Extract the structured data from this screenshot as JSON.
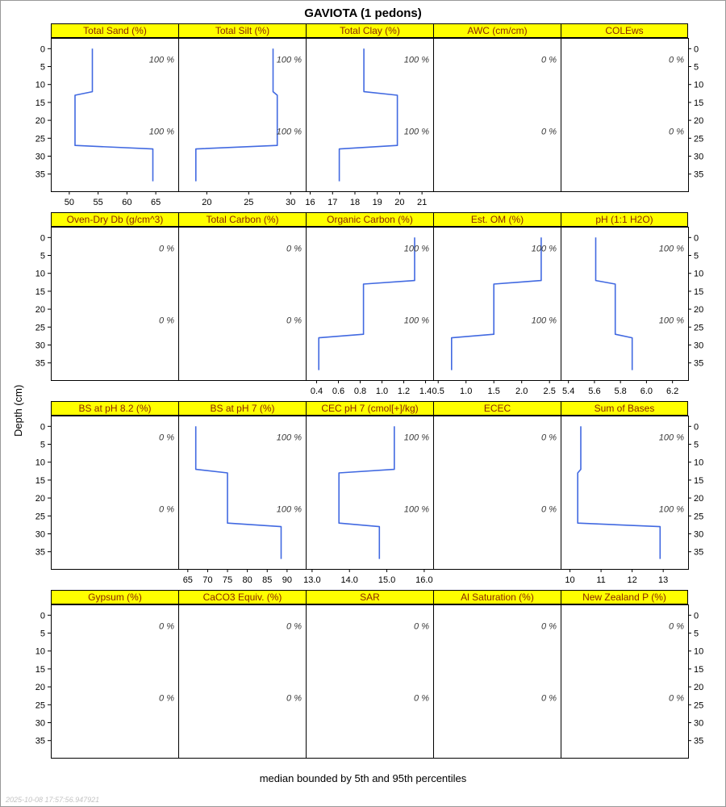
{
  "title": "GAVIOTA (1 pedons)",
  "ylabel": "Depth (cm)",
  "caption": "median bounded by 5th and 95th percentiles",
  "watermark": "2025-10-08 17:57:56.947921",
  "colors": {
    "strip_bg": "#ffff00",
    "strip_text": "#8b2500",
    "line": "#4169e1",
    "annotation": "#3a3a3a",
    "axis": "#000000"
  },
  "depth_ticks": [
    0,
    5,
    10,
    15,
    20,
    25,
    30,
    35
  ],
  "depth_range": [
    -3,
    39.8
  ],
  "chart_data": {
    "type": "line",
    "description": "Step-style depth-function profiles, depth (cm) vs property value, median bounded by 5th and 95th percentiles",
    "rows": [
      {
        "panels": [
          {
            "title": "Total Sand (%)",
            "xlim": [
              46.8,
              68.9
            ],
            "xtick_vals": [
              50,
              55,
              60,
              65
            ],
            "xtick_labels": [
              "50",
              "55",
              "60",
              "65"
            ],
            "line": [
              [
                54,
                0
              ],
              [
                54,
                12
              ],
              [
                51,
                13
              ],
              [
                51,
                27
              ],
              [
                64.5,
                28
              ],
              [
                64.5,
                37
              ]
            ],
            "annotations": [
              {
                "label": "100 %",
                "depth": 3
              },
              {
                "label": "100 %",
                "depth": 23
              }
            ]
          },
          {
            "title": "Total Silt (%)",
            "xlim": [
              16.6,
              31.8
            ],
            "xtick_vals": [
              20,
              25,
              30
            ],
            "xtick_labels": [
              "20",
              "25",
              "30"
            ],
            "line": [
              [
                27.9,
                0
              ],
              [
                27.9,
                12
              ],
              [
                28.4,
                13
              ],
              [
                28.4,
                27
              ],
              [
                18.7,
                28
              ],
              [
                18.7,
                37
              ]
            ],
            "annotations": [
              {
                "label": "100 %",
                "depth": 3
              },
              {
                "label": "100 %",
                "depth": 23
              }
            ]
          },
          {
            "title": "Total Clay (%)",
            "xlim": [
              15.8,
              21.5
            ],
            "xtick_vals": [
              16,
              17,
              18,
              19,
              20,
              21
            ],
            "xtick_labels": [
              "16",
              "17",
              "18",
              "19",
              "20",
              "21"
            ],
            "line": [
              [
                18.4,
                0
              ],
              [
                18.4,
                12
              ],
              [
                19.9,
                13
              ],
              [
                19.9,
                27
              ],
              [
                17.3,
                28
              ],
              [
                17.3,
                37
              ]
            ],
            "annotations": [
              {
                "label": "100 %",
                "depth": 3
              },
              {
                "label": "100 %",
                "depth": 23
              }
            ]
          },
          {
            "title": "AWC (cm/cm)",
            "xlim": [
              0,
              1
            ],
            "xtick_vals": [],
            "xtick_labels": [],
            "line": null,
            "annotations": [
              {
                "label": "0 %",
                "depth": 3
              },
              {
                "label": "0 %",
                "depth": 23
              }
            ]
          },
          {
            "title": "COLEws",
            "xlim": [
              0,
              1
            ],
            "xtick_vals": [],
            "xtick_labels": [],
            "line": null,
            "annotations": [
              {
                "label": "0 %",
                "depth": 3
              },
              {
                "label": "0 %",
                "depth": 23
              }
            ]
          }
        ]
      },
      {
        "panels": [
          {
            "title": "Oven-Dry Db (g/cm^3)",
            "xlim": [
              0,
              1
            ],
            "xtick_vals": [],
            "xtick_labels": [],
            "line": null,
            "annotations": [
              {
                "label": "0 %",
                "depth": 3
              },
              {
                "label": "0 %",
                "depth": 23
              }
            ]
          },
          {
            "title": "Total Carbon (%)",
            "xlim": [
              0,
              1
            ],
            "xtick_vals": [],
            "xtick_labels": [],
            "line": null,
            "annotations": [
              {
                "label": "0 %",
                "depth": 3
              },
              {
                "label": "0 %",
                "depth": 23
              }
            ]
          },
          {
            "title": "Organic Carbon (%)",
            "xlim": [
              0.3,
              1.47
            ],
            "xtick_vals": [
              0.4,
              0.6,
              0.8,
              1.0,
              1.2,
              1.4
            ],
            "xtick_labels": [
              "0.4",
              "0.6",
              "0.8",
              "1.0",
              "1.2",
              "1.4"
            ],
            "line": [
              [
                1.3,
                0
              ],
              [
                1.3,
                12
              ],
              [
                0.83,
                13
              ],
              [
                0.83,
                27
              ],
              [
                0.42,
                28
              ],
              [
                0.42,
                37
              ]
            ],
            "annotations": [
              {
                "label": "100 %",
                "depth": 3
              },
              {
                "label": "100 %",
                "depth": 23
              }
            ]
          },
          {
            "title": "Est. OM (%)",
            "xlim": [
              0.41,
              2.7
            ],
            "xtick_vals": [
              0.5,
              1.0,
              1.5,
              2.0,
              2.5
            ],
            "xtick_labels": [
              "0.5",
              "1.0",
              "1.5",
              "2.0",
              "2.5"
            ],
            "line": [
              [
                2.35,
                0
              ],
              [
                2.35,
                12
              ],
              [
                1.5,
                13
              ],
              [
                1.5,
                27
              ],
              [
                0.74,
                28
              ],
              [
                0.74,
                37
              ]
            ],
            "annotations": [
              {
                "label": "100 %",
                "depth": 3
              },
              {
                "label": "100 %",
                "depth": 23
              }
            ]
          },
          {
            "title": "pH (1:1 H2O)",
            "xlim": [
              5.34,
              6.32
            ],
            "xtick_vals": [
              5.4,
              5.6,
              5.8,
              6.0,
              6.2
            ],
            "xtick_labels": [
              "5.4",
              "5.6",
              "5.8",
              "6.0",
              "6.2"
            ],
            "line": [
              [
                5.61,
                0
              ],
              [
                5.61,
                12
              ],
              [
                5.76,
                13
              ],
              [
                5.76,
                27
              ],
              [
                5.89,
                28
              ],
              [
                5.89,
                37
              ]
            ],
            "annotations": [
              {
                "label": "100 %",
                "depth": 3
              },
              {
                "label": "100 %",
                "depth": 23
              }
            ]
          }
        ]
      },
      {
        "panels": [
          {
            "title": "BS at pH 8.2 (%)",
            "xlim": [
              0,
              1
            ],
            "xtick_vals": [],
            "xtick_labels": [],
            "line": null,
            "annotations": [
              {
                "label": "0 %",
                "depth": 3
              },
              {
                "label": "0 %",
                "depth": 23
              }
            ]
          },
          {
            "title": "BS at pH 7 (%)",
            "xlim": [
              62.6,
              94.7
            ],
            "xtick_vals": [
              65,
              70,
              75,
              80,
              85,
              90
            ],
            "xtick_labels": [
              "65",
              "70",
              "75",
              "80",
              "85",
              "90"
            ],
            "line": [
              [
                67,
                0
              ],
              [
                67,
                12
              ],
              [
                75,
                13
              ],
              [
                75,
                27
              ],
              [
                88.5,
                28
              ],
              [
                88.5,
                37
              ]
            ],
            "annotations": [
              {
                "label": "100 %",
                "depth": 3
              },
              {
                "label": "100 %",
                "depth": 23
              }
            ]
          },
          {
            "title": "CEC pH 7 (cmol[+]/kg)",
            "xlim": [
              12.83,
              16.24
            ],
            "xtick_vals": [
              13.0,
              14.0,
              15.0,
              16.0
            ],
            "xtick_labels": [
              "13.0",
              "14.0",
              "15.0",
              "16.0"
            ],
            "line": [
              [
                15.2,
                0
              ],
              [
                15.2,
                12
              ],
              [
                13.72,
                13
              ],
              [
                13.72,
                27
              ],
              [
                14.8,
                28
              ],
              [
                14.8,
                37
              ]
            ],
            "annotations": [
              {
                "label": "100 %",
                "depth": 3
              },
              {
                "label": "100 %",
                "depth": 23
              }
            ]
          },
          {
            "title": "ECEC",
            "xlim": [
              0,
              1
            ],
            "xtick_vals": [],
            "xtick_labels": [],
            "line": null,
            "annotations": [
              {
                "label": "0 %",
                "depth": 3
              },
              {
                "label": "0 %",
                "depth": 23
              }
            ]
          },
          {
            "title": "Sum of Bases",
            "xlim": [
              9.7,
              13.8
            ],
            "xtick_vals": [
              10,
              11,
              12,
              13
            ],
            "xtick_labels": [
              "10",
              "11",
              "12",
              "13"
            ],
            "line": [
              [
                10.35,
                0
              ],
              [
                10.35,
                12
              ],
              [
                10.25,
                13
              ],
              [
                10.25,
                27
              ],
              [
                12.9,
                28
              ],
              [
                12.9,
                37
              ]
            ],
            "annotations": [
              {
                "label": "100 %",
                "depth": 3
              },
              {
                "label": "100 %",
                "depth": 23
              }
            ]
          }
        ]
      },
      {
        "panels": [
          {
            "title": "Gypsum (%)",
            "xlim": [
              0,
              1
            ],
            "xtick_vals": [],
            "xtick_labels": [],
            "line": null,
            "annotations": [
              {
                "label": "0 %",
                "depth": 3
              },
              {
                "label": "0 %",
                "depth": 23
              }
            ]
          },
          {
            "title": "CaCO3 Equiv. (%)",
            "xlim": [
              0,
              1
            ],
            "xtick_vals": [],
            "xtick_labels": [],
            "line": null,
            "annotations": [
              {
                "label": "0 %",
                "depth": 3
              },
              {
                "label": "0 %",
                "depth": 23
              }
            ]
          },
          {
            "title": "SAR",
            "xlim": [
              0,
              1
            ],
            "xtick_vals": [],
            "xtick_labels": [],
            "line": null,
            "annotations": [
              {
                "label": "0 %",
                "depth": 3
              },
              {
                "label": "0 %",
                "depth": 23
              }
            ]
          },
          {
            "title": "Al Saturation (%)",
            "xlim": [
              0,
              1
            ],
            "xtick_vals": [],
            "xtick_labels": [],
            "line": null,
            "annotations": [
              {
                "label": "0 %",
                "depth": 3
              },
              {
                "label": "0 %",
                "depth": 23
              }
            ]
          },
          {
            "title": "New Zealand P (%)",
            "xlim": [
              0,
              1
            ],
            "xtick_vals": [],
            "xtick_labels": [],
            "line": null,
            "annotations": [
              {
                "label": "0 %",
                "depth": 3
              },
              {
                "label": "0 %",
                "depth": 23
              }
            ]
          }
        ]
      }
    ]
  }
}
